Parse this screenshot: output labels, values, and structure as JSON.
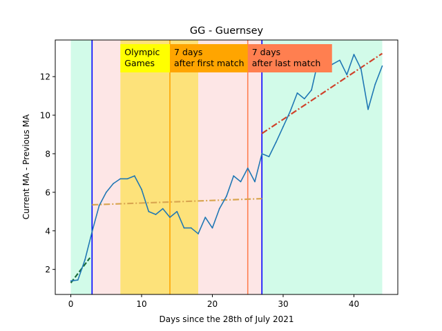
{
  "chart_data": {
    "type": "line",
    "title": "GG - Guernsey",
    "xlabel": "Days since the 28th of July 2021",
    "ylabel": "Current MA - Previous MA",
    "xlim": [
      -2.2,
      46.2
    ],
    "ylim": [
      0.7,
      13.9
    ],
    "xticks": [
      0,
      10,
      20,
      30,
      40
    ],
    "yticks": [
      2,
      4,
      6,
      8,
      10,
      12
    ],
    "grid": false,
    "series": [
      {
        "values_x": [
          0,
          1,
          2,
          3,
          4,
          5,
          6,
          7,
          8,
          9,
          10,
          11,
          12,
          13,
          14,
          15,
          16,
          17,
          18,
          19,
          20,
          21,
          22,
          23,
          24,
          25,
          26,
          27,
          28,
          29,
          30,
          31,
          32,
          33,
          34,
          35,
          36,
          37,
          38,
          39,
          40,
          41,
          42,
          43,
          44
        ],
        "values_y": [
          1.4,
          1.45,
          2.5,
          3.95,
          5.3,
          6.0,
          6.45,
          6.7,
          6.7,
          6.85,
          6.15,
          5.0,
          4.85,
          5.15,
          4.7,
          5.0,
          4.15,
          4.15,
          3.85,
          4.7,
          4.15,
          5.15,
          5.8,
          6.85,
          6.55,
          7.25,
          6.55,
          8.0,
          7.85,
          8.6,
          9.4,
          10.2,
          11.15,
          10.85,
          11.3,
          12.9,
          12.4,
          12.65,
          12.85,
          12.1,
          13.15,
          12.4,
          10.3,
          11.6,
          12.55
        ],
        "color": "#1f77b4"
      }
    ],
    "trend_lines": [
      {
        "x": [
          0,
          2.7
        ],
        "y": [
          1.3,
          2.6
        ],
        "color": "#1a6b3a",
        "style": "dashed"
      },
      {
        "x": [
          3,
          27
        ],
        "y": [
          5.35,
          5.67
        ],
        "color": "#d9a550",
        "style": "dashdot"
      },
      {
        "x": [
          27,
          44
        ],
        "y": [
          9.05,
          13.2
        ],
        "color": "#d0412a",
        "style": "dashdot"
      }
    ],
    "shaded_regions": [
      {
        "x0": 0,
        "x1": 3,
        "color": "#d2fbe9"
      },
      {
        "x0": 3,
        "x1": 7,
        "color": "#fde6e6"
      },
      {
        "x0": 7,
        "x1": 18,
        "color": "#fde27a"
      },
      {
        "x0": 18,
        "x1": 27,
        "color": "#fde6e6"
      },
      {
        "x0": 27,
        "x1": 44,
        "color": "#d2fbe9"
      }
    ],
    "vertical_lines": [
      {
        "x": 3,
        "color": "#0000ff"
      },
      {
        "x": 14,
        "color": "#ffa500"
      },
      {
        "x": 25,
        "color": "#ff7f50"
      },
      {
        "x": 27,
        "color": "#0000ff"
      }
    ],
    "annotations": [
      {
        "lines": [
          "Olympic",
          "Games"
        ],
        "x": 7,
        "bg": "#ffff00"
      },
      {
        "lines": [
          "7 days",
          "after first match"
        ],
        "x": 14,
        "bg": "#ffa500"
      },
      {
        "lines": [
          "7 days",
          "after last match"
        ],
        "x": 25,
        "bg": "#ff7f50"
      }
    ]
  }
}
